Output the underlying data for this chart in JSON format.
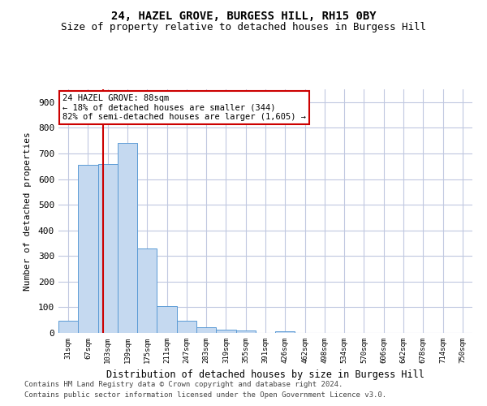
{
  "title1": "24, HAZEL GROVE, BURGESS HILL, RH15 0BY",
  "title2": "Size of property relative to detached houses in Burgess Hill",
  "xlabel": "Distribution of detached houses by size in Burgess Hill",
  "ylabel": "Number of detached properties",
  "categories": [
    "31sqm",
    "67sqm",
    "103sqm",
    "139sqm",
    "175sqm",
    "211sqm",
    "247sqm",
    "283sqm",
    "319sqm",
    "355sqm",
    "391sqm",
    "426sqm",
    "462sqm",
    "498sqm",
    "534sqm",
    "570sqm",
    "606sqm",
    "642sqm",
    "678sqm",
    "714sqm",
    "750sqm"
  ],
  "values": [
    48,
    655,
    660,
    740,
    328,
    103,
    48,
    22,
    13,
    9,
    0,
    7,
    0,
    0,
    0,
    0,
    0,
    0,
    0,
    0,
    0
  ],
  "bar_color": "#c5d9f0",
  "bar_edge_color": "#5b9bd5",
  "red_line_x": 1.75,
  "annotation_text": "24 HAZEL GROVE: 88sqm\n← 18% of detached houses are smaller (344)\n82% of semi-detached houses are larger (1,605) →",
  "annotation_box_color": "#ffffff",
  "annotation_box_edge": "#cc0000",
  "red_line_color": "#cc0000",
  "ylim": [
    0,
    950
  ],
  "yticks": [
    0,
    100,
    200,
    300,
    400,
    500,
    600,
    700,
    800,
    900
  ],
  "footer1": "Contains HM Land Registry data © Crown copyright and database right 2024.",
  "footer2": "Contains public sector information licensed under the Open Government Licence v3.0.",
  "background_color": "#ffffff",
  "grid_color": "#c0c8e0",
  "title1_fontsize": 10,
  "title2_fontsize": 9
}
